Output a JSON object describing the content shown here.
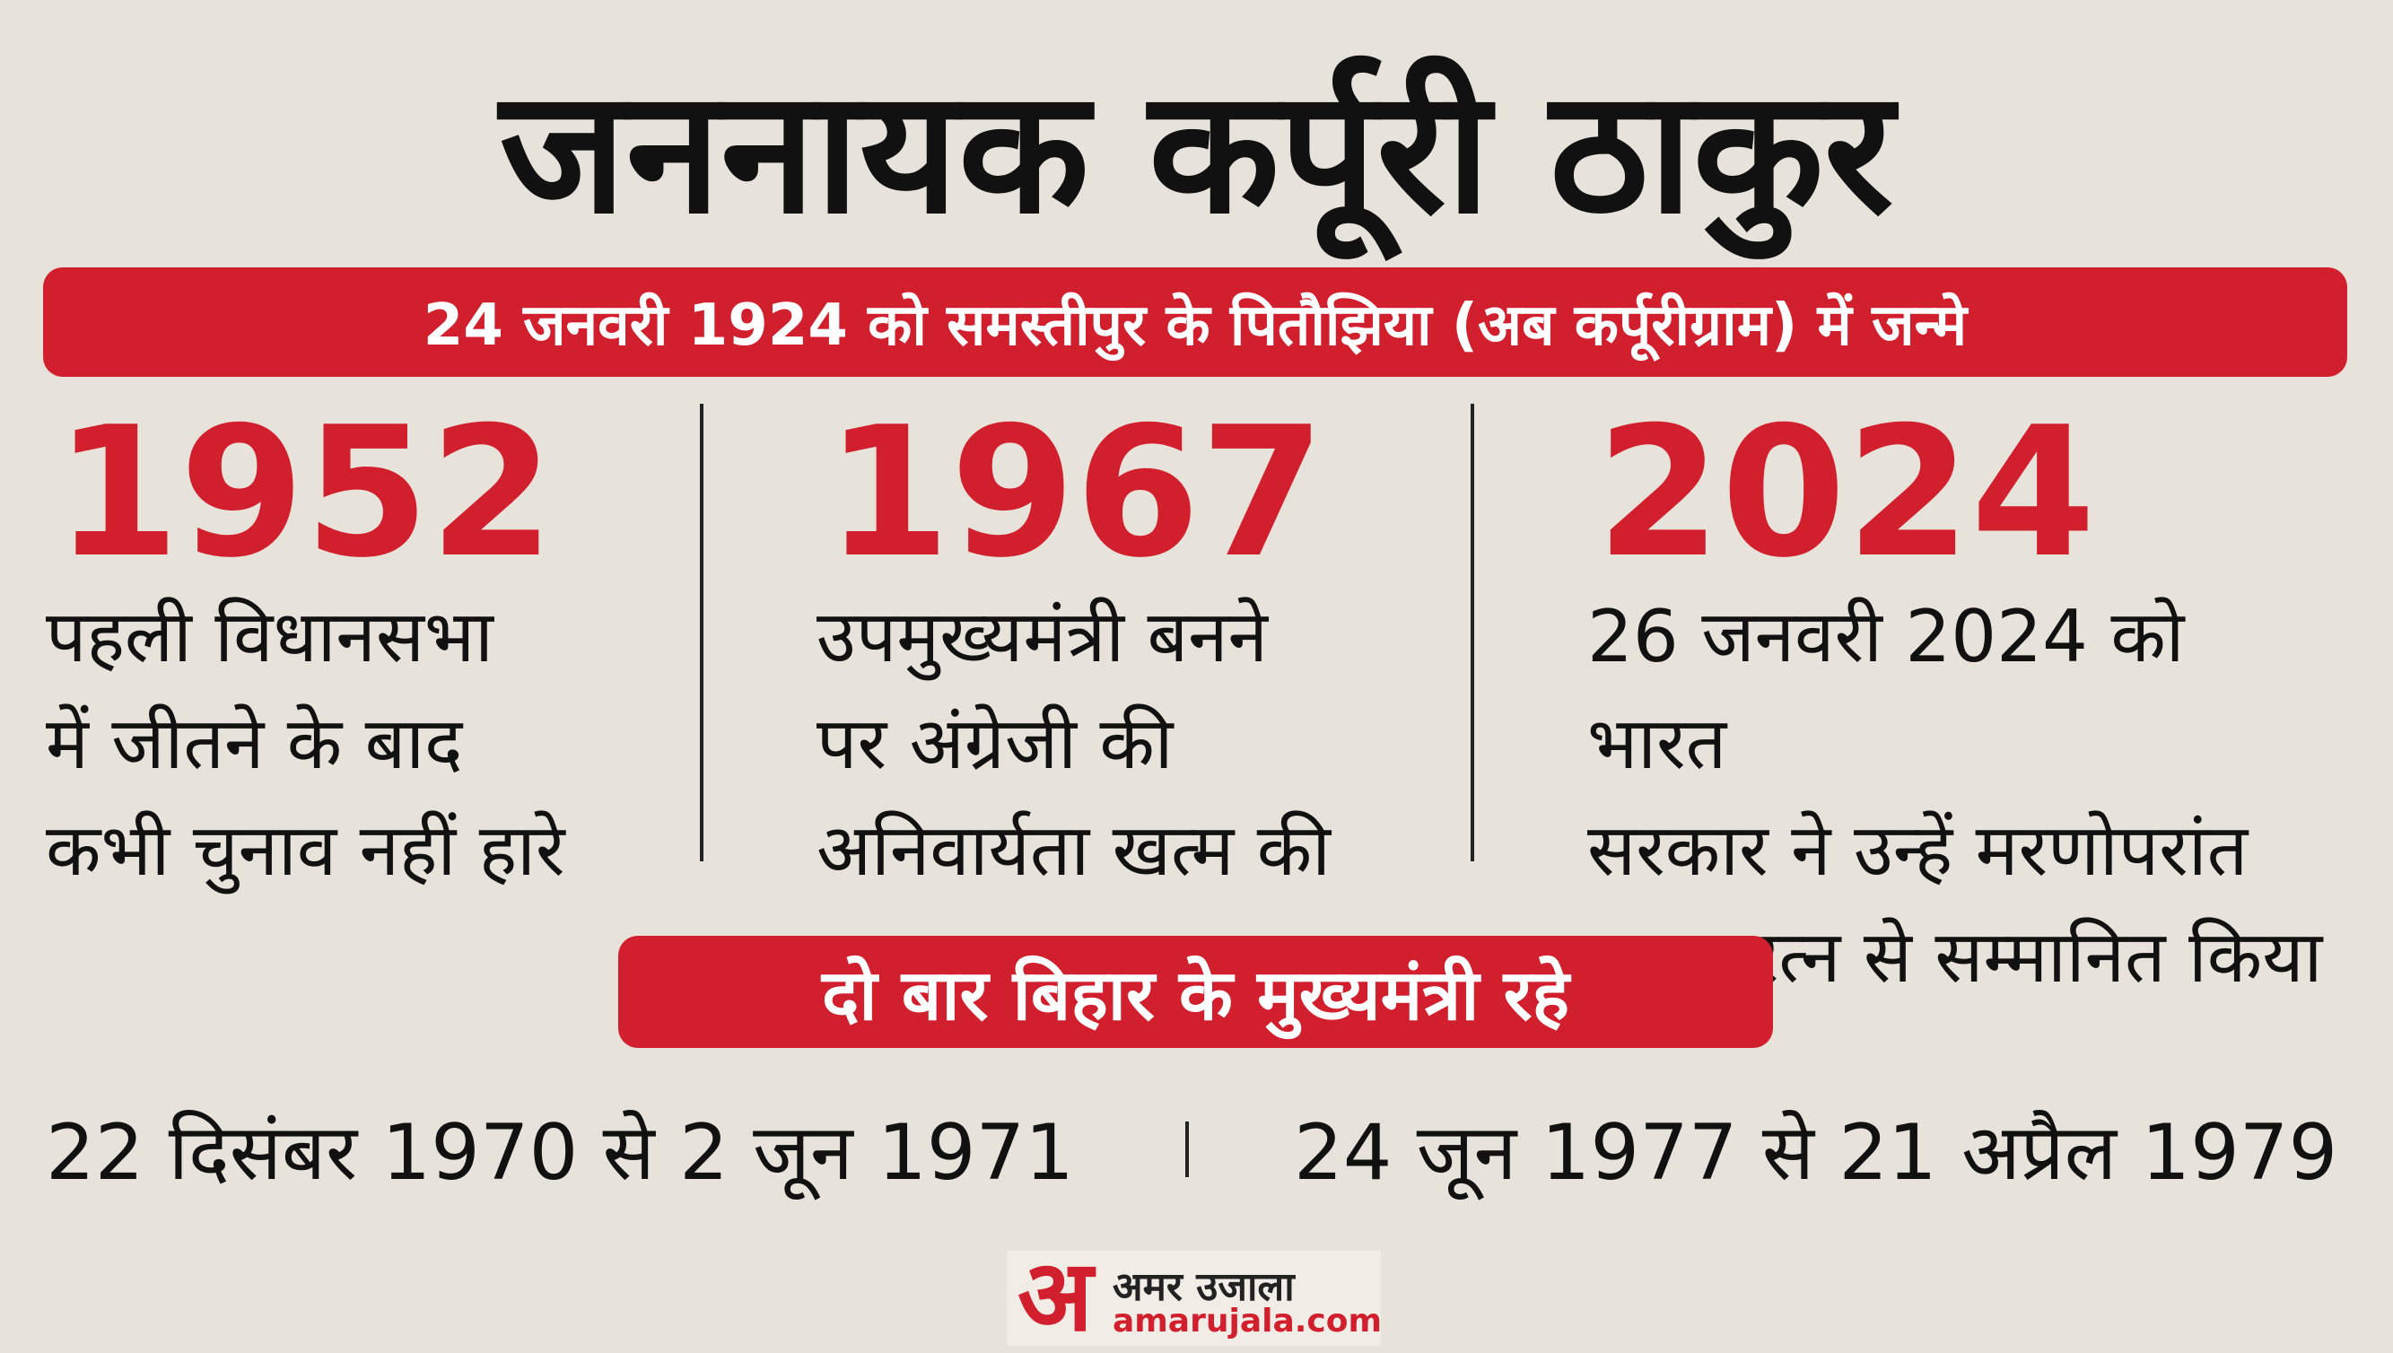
{
  "header": {
    "title": "जननायक कर्पूरी ठाकुर",
    "subtitle": "24 जनवरी 1924 को समस्तीपुर के पितौझिया (अब कर्पूरीग्राम) में जन्मे"
  },
  "columns": [
    {
      "year": "1952",
      "lines": [
        "पहली विधानसभा",
        "में जीतने के बाद",
        "कभी चुनाव नहीं हारे"
      ]
    },
    {
      "year": "1967",
      "lines": [
        "उपमुख्यमंत्री बनने",
        "पर अंग्रेजी की",
        "अनिवार्यता खत्म की"
      ]
    },
    {
      "year": "2024",
      "lines": [
        "26 जनवरी 2024 को भारत",
        "सरकार ने उन्हें मरणोपरांत",
        "भारत रत्न से सम्मानित किया"
      ]
    }
  ],
  "banner": "दो बार बिहार के मुख्यमंत्री रहे",
  "terms": [
    "22 दिसंबर 1970 से 2 जून 1971",
    "24 जून 1977 से 21 अप्रैल 1979"
  ],
  "logo": {
    "mark": "अ",
    "name": "अमर उजाला",
    "url": "amarujala.com"
  }
}
